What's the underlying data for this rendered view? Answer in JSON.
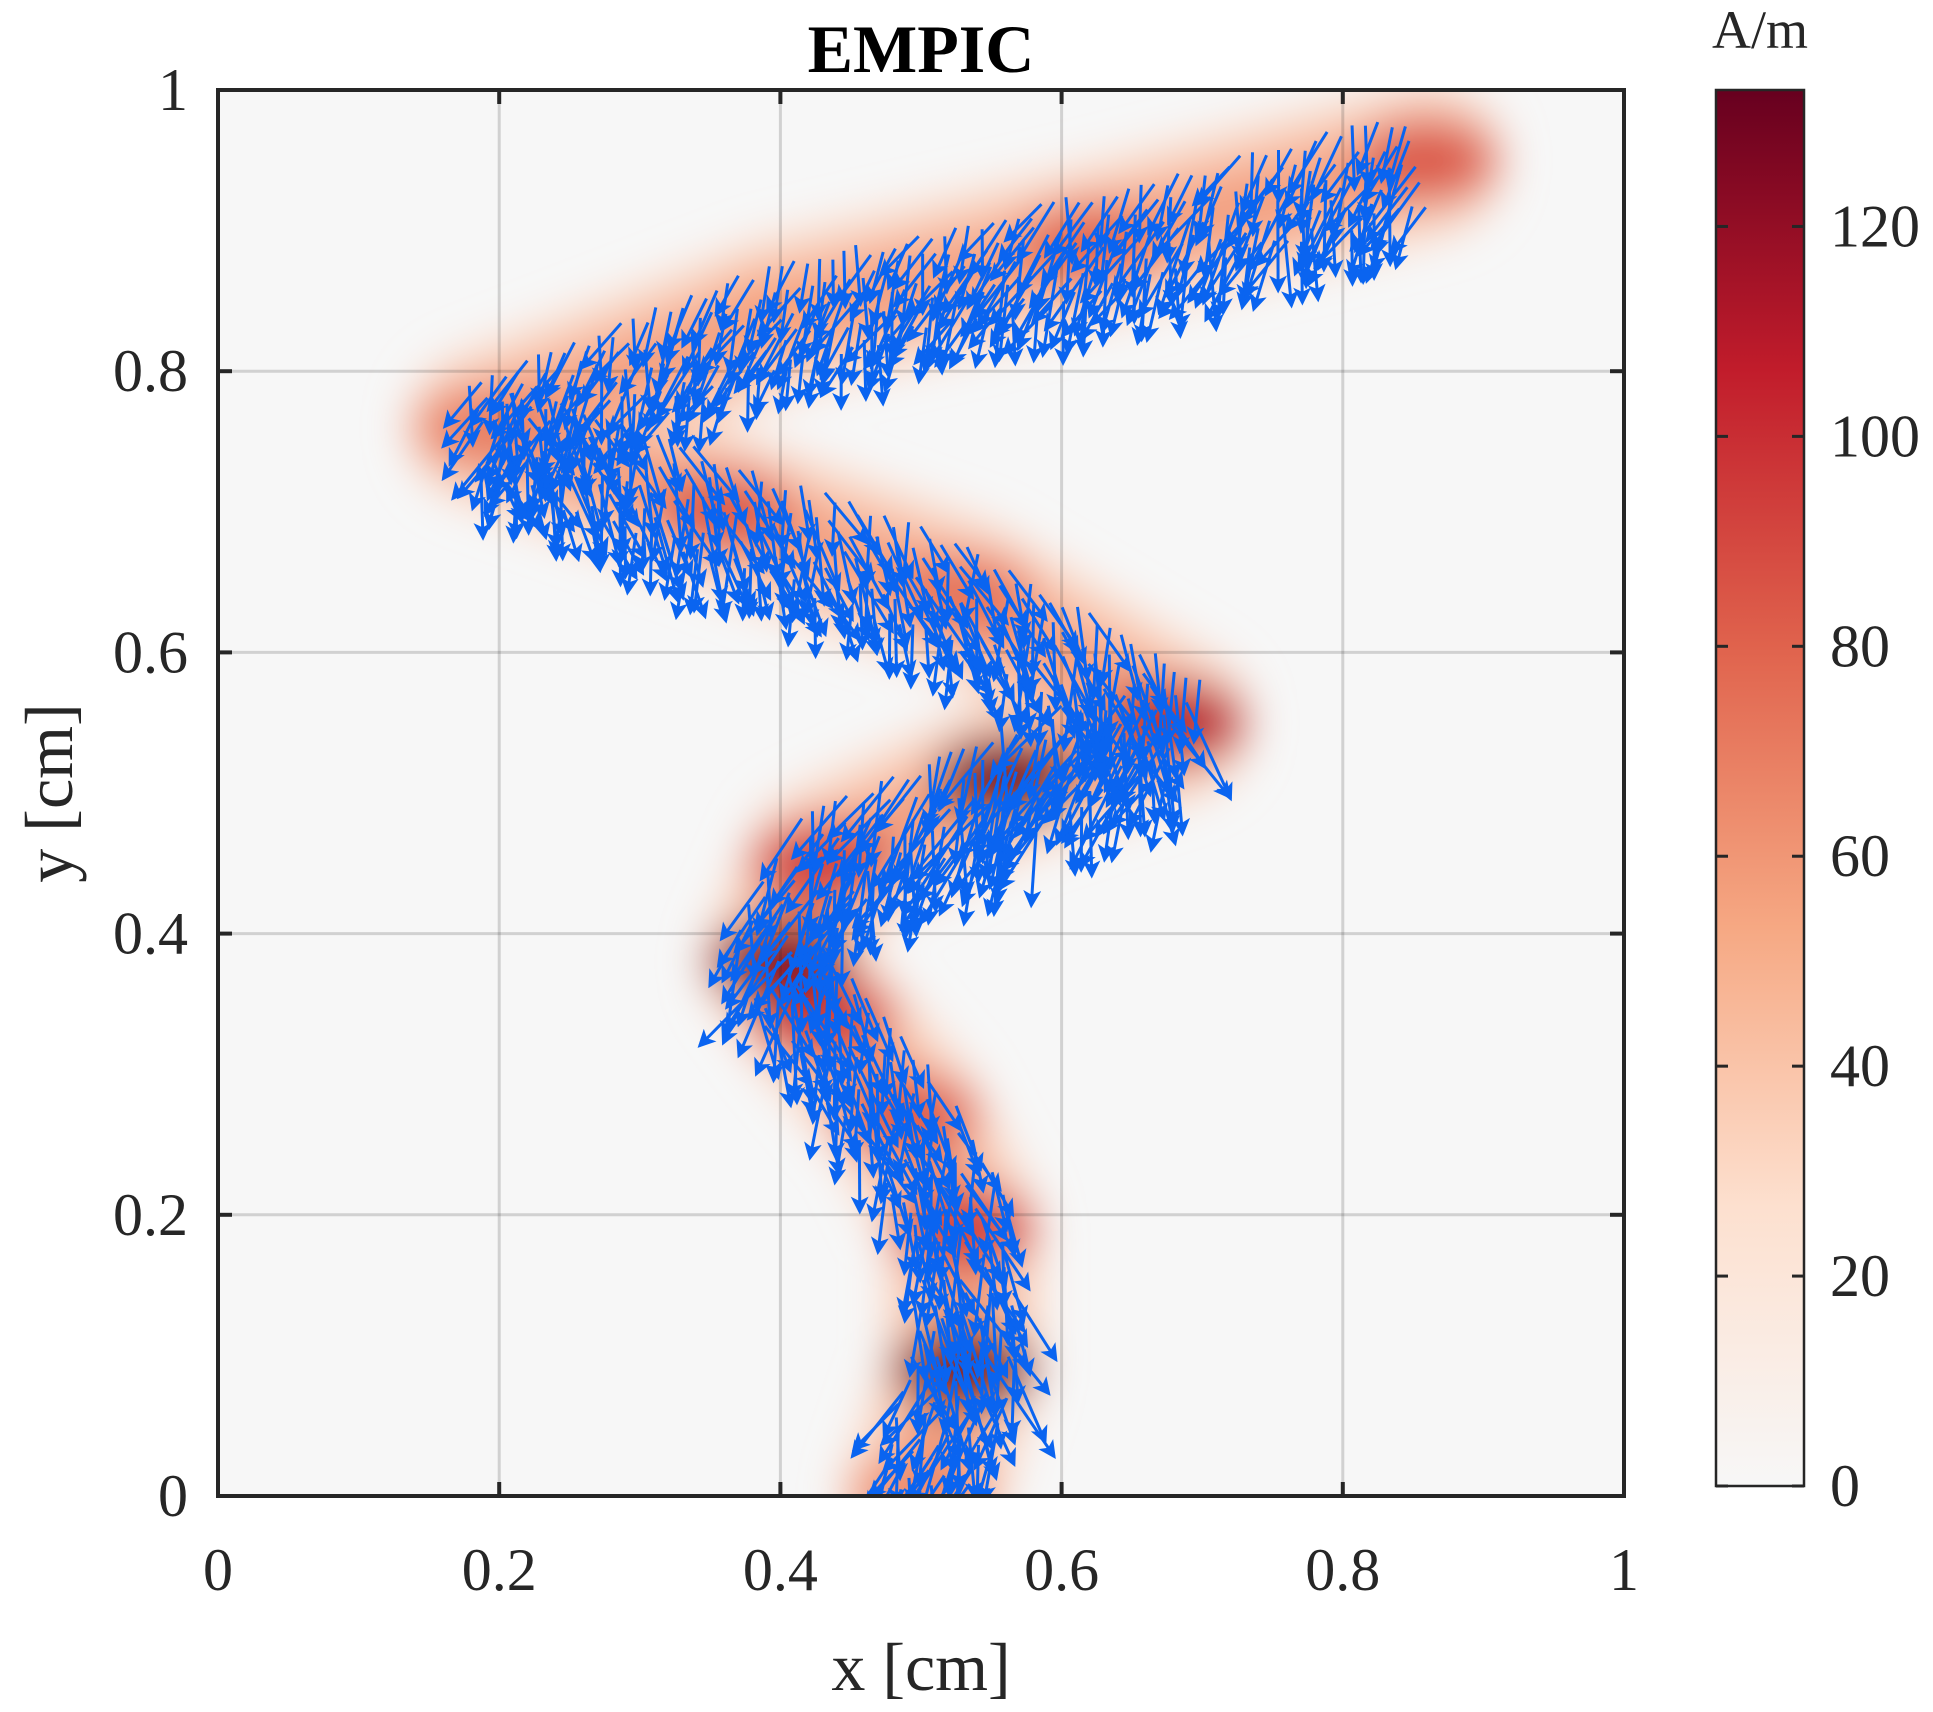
{
  "chart_data": {
    "type": "heatmap",
    "title": "EMPIC",
    "xlabel": "x [cm]",
    "ylabel": "y [cm]",
    "xlim": [
      0,
      1
    ],
    "ylim": [
      0,
      1
    ],
    "x_ticks": [
      0,
      0.2,
      0.4,
      0.6,
      0.8,
      1
    ],
    "x_tick_labels": [
      "0",
      "0.2",
      "0.4",
      "0.6",
      "0.8",
      "1"
    ],
    "y_ticks": [
      0,
      0.2,
      0.4,
      0.6,
      0.8,
      1
    ],
    "y_tick_labels": [
      "0",
      "0.2",
      "0.4",
      "0.6",
      "0.8",
      "1"
    ],
    "grid": true,
    "colorbar": {
      "label": "A/m",
      "range": [
        0,
        133
      ],
      "ticks": [
        0,
        20,
        40,
        60,
        80,
        100,
        120
      ],
      "tick_labels": [
        "0",
        "20",
        "40",
        "60",
        "80",
        "100",
        "120"
      ],
      "colormap": [
        "#f7f7f7",
        "#fde0cf",
        "#f6a883",
        "#e0634d",
        "#c11c2b",
        "#67001f"
      ]
    },
    "quiver_color": "#0a64f0",
    "current_density_path": [
      {
        "x": 0.5,
        "y": 0.0,
        "peak": 65
      },
      {
        "x": 0.53,
        "y": 0.09,
        "peak": 130
      },
      {
        "x": 0.53,
        "y": 0.19,
        "peak": 95
      },
      {
        "x": 0.49,
        "y": 0.27,
        "peak": 85
      },
      {
        "x": 0.43,
        "y": 0.34,
        "peak": 95
      },
      {
        "x": 0.4,
        "y": 0.38,
        "peak": 125
      },
      {
        "x": 0.43,
        "y": 0.45,
        "peak": 95
      },
      {
        "x": 0.56,
        "y": 0.51,
        "peak": 130
      },
      {
        "x": 0.68,
        "y": 0.55,
        "peak": 110
      },
      {
        "x": 0.53,
        "y": 0.64,
        "peak": 75
      },
      {
        "x": 0.36,
        "y": 0.7,
        "peak": 85
      },
      {
        "x": 0.19,
        "y": 0.76,
        "peak": 70
      },
      {
        "x": 0.4,
        "y": 0.84,
        "peak": 55
      },
      {
        "x": 0.62,
        "y": 0.89,
        "peak": 80
      },
      {
        "x": 0.86,
        "y": 0.95,
        "peak": 85
      }
    ]
  }
}
